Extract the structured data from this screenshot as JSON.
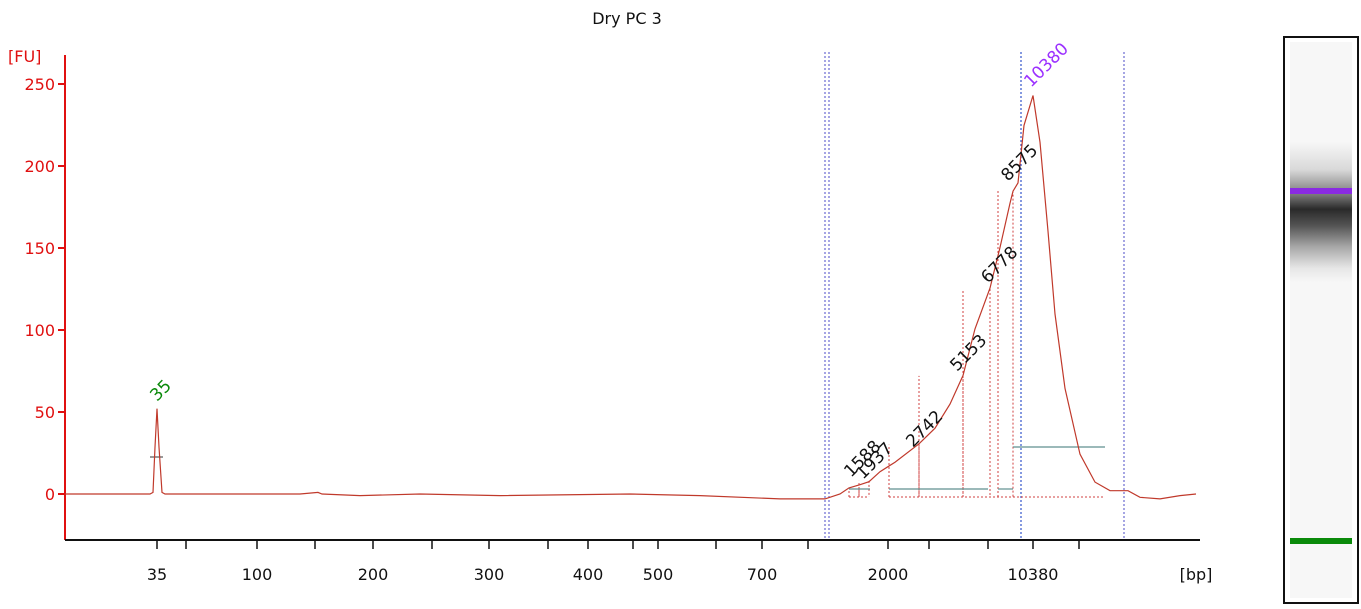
{
  "chart_data": {
    "type": "line",
    "title": "Dry PC 3",
    "ylabel": "[FU]",
    "xlabel": "[bp]",
    "ylim": [
      -28,
      260
    ],
    "yticks": [
      0,
      50,
      100,
      150,
      200,
      250
    ],
    "xtick_labels": [
      "35",
      "100",
      "200",
      "300",
      "400",
      "500",
      "700",
      "2000",
      "10380"
    ],
    "series": [
      {
        "values_note": "fluorescence trace vs migration (bp axis)",
        "points": [
          [
            "start",
            0
          ],
          [
            "35",
            0
          ],
          [
            "35",
            52
          ],
          [
            "35",
            0
          ],
          [
            "100",
            0
          ],
          [
            "200",
            -1
          ],
          [
            "300",
            0
          ],
          [
            "400",
            -1
          ],
          [
            "500",
            -1
          ],
          [
            "700",
            -3
          ],
          [
            "marker-lower",
            -3
          ],
          [
            "1588",
            3
          ],
          [
            "1937",
            8
          ],
          [
            "2000",
            12
          ],
          [
            "2742",
            30
          ],
          [
            "5153",
            72
          ],
          [
            "6778",
            125
          ],
          [
            "8575",
            185
          ],
          [
            "10380",
            243
          ],
          [
            "upper-tail",
            100
          ],
          [
            "end",
            0
          ]
        ]
      }
    ],
    "peaks": [
      {
        "label": "35",
        "fu": 52,
        "color": "#0a8a0a"
      },
      {
        "label": "1588",
        "fu": 3,
        "color": "#111111"
      },
      {
        "label": "1937",
        "fu": 8,
        "color": "#111111"
      },
      {
        "label": "2742",
        "fu": 30,
        "color": "#111111"
      },
      {
        "label": "5153",
        "fu": 72,
        "color": "#111111"
      },
      {
        "label": "6778",
        "fu": 125,
        "color": "#111111"
      },
      {
        "label": "8575",
        "fu": 185,
        "color": "#111111"
      },
      {
        "label": "10380",
        "fu": 243,
        "color": "#9b30ff"
      }
    ],
    "colors": {
      "trace": "#c0392b",
      "y_axis": "#e01010",
      "marker_lower": "#0a8a0a",
      "marker_upper": "#9b30ff",
      "region_lines": "#6a6ad0",
      "baseline_segments": "#5f8f8f"
    }
  },
  "gel": {
    "band_colors": {
      "upper": "#8a2be2",
      "lower": "#0a8a0a"
    }
  }
}
